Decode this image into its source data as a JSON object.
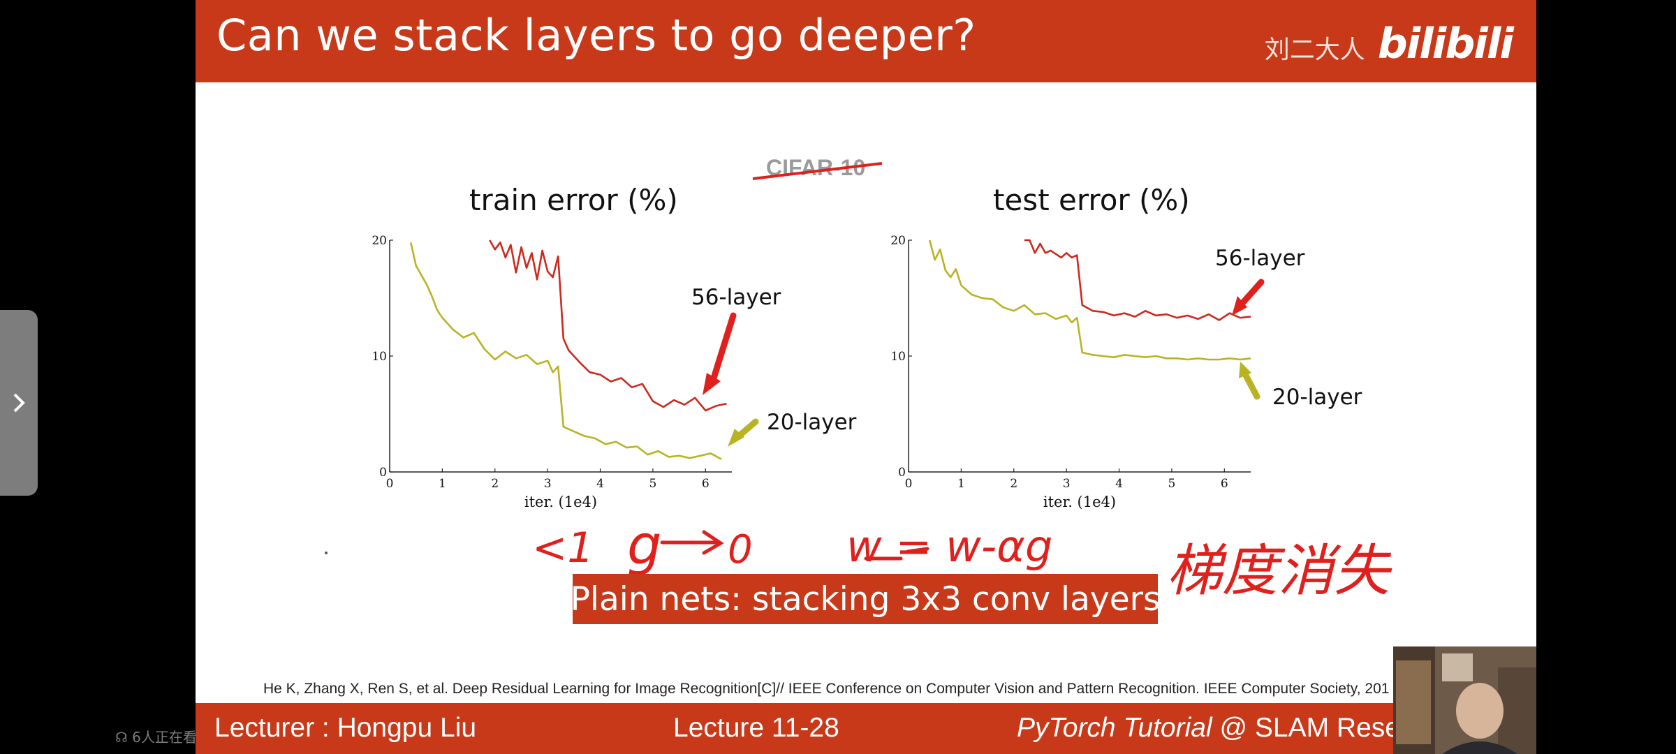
{
  "slide": {
    "title": "Can we stack layers to go deeper?",
    "channel_name": "刘二大人",
    "logo_text": "bilibili",
    "dataset_label": "CIFAR-10",
    "caption": "Plain nets: stacking 3x3 conv layers",
    "citation": "He K, Zhang X, Ren S, et al. Deep Residual Learning for Image Recognition[C]// IEEE Conference on Computer Vision and Pattern Recognition. IEEE Computer Society, 201",
    "bottom": {
      "lecturer": "Lecturer : Hongpu Liu",
      "lecture": "Lecture 11-28",
      "tutorial_italic": "PyTorch Tutorial",
      "tutorial_rest": " @ SLAM Resea"
    },
    "colors": {
      "accent": "#c8391a",
      "red_series": "#cc2a1e",
      "olive_series": "#b9b324",
      "annotation": "#e0201c"
    }
  },
  "chart_data": [
    {
      "type": "line",
      "title": "train error (%)",
      "xlabel": "iter. (1e4)",
      "ylabel": "",
      "xlim": [
        0,
        6.5
      ],
      "ylim": [
        0,
        20
      ],
      "xticks": [
        "0",
        "1",
        "2",
        "3",
        "4",
        "5",
        "6"
      ],
      "yticks": [
        "0",
        "10",
        "20"
      ],
      "series": [
        {
          "name": "56-layer",
          "color": "#cc2a1e",
          "x": [
            1.9,
            2.0,
            2.1,
            2.2,
            2.3,
            2.4,
            2.5,
            2.6,
            2.7,
            2.8,
            2.9,
            3.0,
            3.1,
            3.2,
            3.3,
            3.4,
            3.5,
            3.6,
            3.8,
            4.0,
            4.2,
            4.4,
            4.6,
            4.8,
            5.0,
            5.2,
            5.4,
            5.6,
            5.8,
            6.0,
            6.2,
            6.4
          ],
          "y": [
            20,
            19.2,
            19.8,
            18.5,
            19.6,
            17.2,
            19.4,
            17.6,
            18.9,
            16.6,
            19.1,
            17.3,
            16.8,
            18.6,
            11.5,
            10.5,
            10.0,
            9.5,
            8.6,
            8.4,
            7.8,
            8.1,
            7.3,
            7.6,
            6.1,
            5.6,
            6.2,
            5.8,
            6.4,
            5.3,
            5.7,
            5.9
          ]
        },
        {
          "name": "20-layer",
          "color": "#b9b324",
          "x": [
            0.4,
            0.5,
            0.6,
            0.7,
            0.8,
            0.9,
            1.0,
            1.2,
            1.4,
            1.6,
            1.8,
            2.0,
            2.2,
            2.4,
            2.6,
            2.8,
            3.0,
            3.1,
            3.2,
            3.3,
            3.5,
            3.7,
            3.9,
            4.1,
            4.3,
            4.5,
            4.7,
            4.9,
            5.1,
            5.3,
            5.5,
            5.7,
            5.9,
            6.1,
            6.3
          ],
          "y": [
            19.8,
            17.8,
            17.0,
            16.2,
            15.2,
            14.0,
            13.3,
            12.3,
            11.6,
            12.0,
            10.6,
            9.7,
            10.4,
            9.8,
            10.1,
            9.3,
            9.6,
            8.6,
            9.1,
            3.9,
            3.5,
            3.1,
            2.9,
            2.4,
            2.6,
            2.1,
            2.2,
            1.5,
            1.8,
            1.3,
            1.4,
            1.2,
            1.4,
            1.6,
            1.1
          ]
        }
      ]
    },
    {
      "type": "line",
      "title": "test error (%)",
      "xlabel": "iter. (1e4)",
      "ylabel": "",
      "xlim": [
        0,
        6.5
      ],
      "ylim": [
        0,
        20
      ],
      "xticks": [
        "0",
        "1",
        "2",
        "3",
        "4",
        "5",
        "6"
      ],
      "yticks": [
        "0",
        "10",
        "20"
      ],
      "series": [
        {
          "name": "56-layer",
          "color": "#cc2a1e",
          "x": [
            2.2,
            2.3,
            2.4,
            2.5,
            2.6,
            2.7,
            2.8,
            2.9,
            3.0,
            3.1,
            3.2,
            3.3,
            3.5,
            3.7,
            3.9,
            4.1,
            4.3,
            4.5,
            4.7,
            4.9,
            5.1,
            5.3,
            5.5,
            5.7,
            5.9,
            6.1,
            6.3,
            6.5
          ],
          "y": [
            20,
            20.0,
            18.9,
            19.7,
            18.9,
            19.1,
            18.8,
            18.5,
            18.9,
            18.5,
            18.7,
            14.4,
            13.9,
            13.8,
            13.5,
            13.7,
            13.4,
            13.9,
            13.5,
            13.6,
            13.3,
            13.5,
            13.2,
            13.6,
            13.1,
            13.7,
            13.3,
            13.4
          ]
        },
        {
          "name": "20-layer",
          "color": "#b9b324",
          "x": [
            0.4,
            0.5,
            0.6,
            0.7,
            0.8,
            0.9,
            1.0,
            1.2,
            1.4,
            1.6,
            1.8,
            2.0,
            2.2,
            2.4,
            2.6,
            2.8,
            3.0,
            3.1,
            3.2,
            3.3,
            3.5,
            3.7,
            3.9,
            4.1,
            4.3,
            4.5,
            4.7,
            4.9,
            5.1,
            5.3,
            5.5,
            5.7,
            5.9,
            6.1,
            6.3,
            6.5
          ],
          "y": [
            20,
            18.3,
            19.2,
            17.4,
            16.8,
            17.5,
            16.1,
            15.3,
            15.0,
            14.9,
            14.2,
            13.9,
            14.4,
            13.6,
            13.7,
            13.2,
            13.5,
            12.9,
            13.3,
            10.3,
            10.1,
            10.0,
            9.9,
            10.1,
            10.0,
            9.9,
            10.0,
            9.8,
            9.8,
            9.7,
            9.8,
            9.7,
            9.7,
            9.8,
            9.7,
            9.8
          ]
        }
      ]
    }
  ],
  "annotations": {
    "series_labels": [
      "56-layer",
      "20-layer",
      "56-layer",
      "20-layer"
    ],
    "handwriting_math": [
      "<1",
      "g",
      "0",
      "w = w-αg"
    ],
    "handwriting_cn": "梯度消失"
  },
  "overlay": {
    "viewer_count": "6人正在看"
  }
}
